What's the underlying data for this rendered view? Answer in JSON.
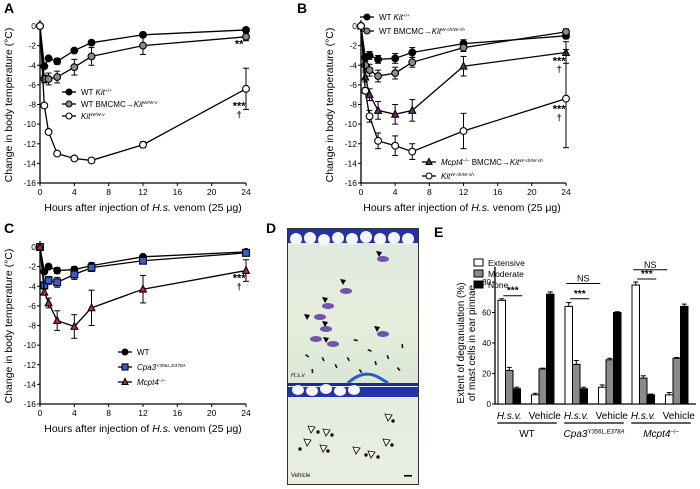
{
  "panels": {
    "A": "A",
    "B": "B",
    "C": "C",
    "D": "D",
    "E": "E"
  },
  "colors": {
    "black": "#000000",
    "gray": "#8a8a8a",
    "white": "#ffffff",
    "purple": "#6b2a7a",
    "blue": "#3a5bd9",
    "red": "#c0282b",
    "toluidine_blue": "#2a3db0",
    "tissue": "#e6eedc"
  },
  "chart_data": [
    {
      "id": "A",
      "type": "line",
      "xlabel": "Hours after injection of H.s. venom (25 μg)",
      "ylabel": "Change in body temperature (°C)",
      "xlim": [
        0,
        24
      ],
      "ylim": [
        -16,
        0
      ],
      "xticks": [
        0,
        4,
        8,
        12,
        16,
        20,
        24
      ],
      "yticks": [
        0,
        -2,
        -4,
        -6,
        -8,
        -10,
        -12,
        -14,
        -16
      ],
      "legend_position": "middle-left",
      "series": [
        {
          "name": "WT Kit+/+",
          "marker": "circle",
          "fill": "black",
          "x": [
            0,
            0.5,
            1,
            2,
            4,
            6,
            12,
            24
          ],
          "y": [
            0,
            -4.1,
            -3.3,
            -3.6,
            -2.5,
            -1.7,
            -0.9,
            -0.4
          ],
          "err": [
            0,
            0.2,
            0.2,
            0.3,
            0.2,
            0.2,
            0.2,
            0.2
          ]
        },
        {
          "name": "WT BMCMC→KitW/W-v",
          "marker": "circle",
          "fill": "gray",
          "x": [
            0,
            0.5,
            1,
            2,
            4,
            6,
            12,
            24
          ],
          "y": [
            0,
            -5.4,
            -5.4,
            -5.2,
            -4.2,
            -3.1,
            -2.0,
            -1.1
          ],
          "err": [
            0,
            0.4,
            0.6,
            0.6,
            0.8,
            0.9,
            0.9,
            0.4
          ]
        },
        {
          "name": "KitW/W-v",
          "marker": "circle",
          "fill": "white",
          "x": [
            0,
            0.5,
            1,
            2,
            4,
            6,
            12,
            24
          ],
          "y": [
            0,
            -8.1,
            -10.8,
            -13.0,
            -13.5,
            -13.7,
            -12.1,
            -6.4
          ],
          "err": [
            0,
            0.2,
            0.2,
            0.2,
            0.2,
            0.2,
            0.3,
            2.1
          ]
        }
      ],
      "annotations": [
        {
          "text": "**",
          "x": 23.2,
          "y": -1.8
        },
        {
          "text": "***",
          "x": 23.2,
          "y": -8.1
        },
        {
          "text": "†",
          "x": 23.2,
          "y": -8.9
        }
      ]
    },
    {
      "id": "B",
      "type": "line",
      "xlabel": "Hours after injection of H.s. venom (25 μg)",
      "ylabel": "Change in body temperature (°C)",
      "xlim": [
        0,
        24
      ],
      "ylim": [
        -16,
        0
      ],
      "xticks": [
        0,
        4,
        8,
        12,
        16,
        20,
        24
      ],
      "yticks": [
        0,
        -2,
        -4,
        -6,
        -8,
        -10,
        -12,
        -14,
        -16
      ],
      "legend_position": "top-left / bottom-middle",
      "series": [
        {
          "name": "WT Kit+/+",
          "marker": "circle",
          "fill": "black",
          "x": [
            0,
            0.5,
            1,
            2,
            4,
            6,
            12,
            24
          ],
          "y": [
            0,
            -3.2,
            -3.0,
            -3.4,
            -3.3,
            -2.7,
            -1.8,
            -1.0
          ],
          "err": [
            0,
            0.4,
            0.4,
            0.4,
            0.5,
            0.5,
            0.4,
            0.3
          ]
        },
        {
          "name": "WT BMCMC→KitW-sh/W-sh",
          "marker": "circle",
          "fill": "gray",
          "x": [
            0,
            0.5,
            1,
            2,
            4,
            6,
            12,
            24
          ],
          "y": [
            0,
            -4.0,
            -4.5,
            -5.1,
            -4.8,
            -3.7,
            -2.2,
            -0.6
          ],
          "err": [
            0,
            0.5,
            0.6,
            0.6,
            0.6,
            0.5,
            0.4,
            0.3
          ]
        },
        {
          "name": "Mcpt4-/- BMCMC→KitW-sh/W-sh",
          "marker": "triangle",
          "fill": "purple",
          "x": [
            0,
            0.5,
            1,
            2,
            4,
            6,
            12,
            24
          ],
          "y": [
            0,
            -5.2,
            -7.0,
            -8.6,
            -9.0,
            -8.6,
            -4.1,
            -2.7
          ],
          "err": [
            0,
            0.5,
            0.6,
            0.9,
            1.0,
            1.1,
            1.0,
            1.1
          ]
        },
        {
          "name": "KitW-sh/W-sh",
          "marker": "circle",
          "fill": "white",
          "x": [
            0,
            0.5,
            1,
            2,
            4,
            6,
            12,
            24
          ],
          "y": [
            0,
            -6.6,
            -9.2,
            -11.7,
            -12.2,
            -12.8,
            -10.7,
            -7.4
          ],
          "err": [
            0,
            0.3,
            0.6,
            0.8,
            1.0,
            0.8,
            1.8,
            5.0
          ]
        }
      ],
      "annotations": [
        {
          "text": "***",
          "x": 23.2,
          "y": -3.5
        },
        {
          "text": "†",
          "x": 23.2,
          "y": -4.3
        },
        {
          "text": "***",
          "x": 23.2,
          "y": -8.4
        },
        {
          "text": "†",
          "x": 23.2,
          "y": -9.2
        }
      ]
    },
    {
      "id": "C",
      "type": "line",
      "xlabel": "Hours after injection of H.s. venom (25 μg)",
      "ylabel": "Change in body temperature (°C)",
      "xlim": [
        0,
        24
      ],
      "ylim": [
        -16,
        0
      ],
      "xticks": [
        0,
        4,
        8,
        12,
        16,
        20,
        24
      ],
      "yticks": [
        0,
        -2,
        -4,
        -6,
        -8,
        -10,
        -12,
        -14,
        -16
      ],
      "legend_position": "bottom-middle",
      "series": [
        {
          "name": "WT",
          "marker": "circle",
          "fill": "black",
          "x": [
            0,
            0.5,
            1,
            2,
            4,
            6,
            12,
            24
          ],
          "y": [
            0,
            -2.5,
            -2.0,
            -2.4,
            -2.3,
            -1.9,
            -1.0,
            -0.5
          ],
          "err": [
            0,
            0.2,
            0.2,
            0.3,
            0.3,
            0.3,
            0.2,
            0.2
          ]
        },
        {
          "name": "Cpa3Y356L,E378A",
          "marker": "square",
          "fill": "blue",
          "x": [
            0,
            0.5,
            1,
            2,
            4,
            6,
            12,
            24
          ],
          "y": [
            0,
            -3.9,
            -3.4,
            -3.6,
            -2.8,
            -2.1,
            -1.4,
            -0.6
          ],
          "err": [
            0,
            0.3,
            0.4,
            0.5,
            0.5,
            0.4,
            0.3,
            0.2
          ]
        },
        {
          "name": "Mcpt4-/-",
          "marker": "triangle",
          "fill": "red",
          "x": [
            0,
            0.5,
            1,
            2,
            4,
            6,
            12,
            24
          ],
          "y": [
            0,
            -4.6,
            -5.7,
            -7.5,
            -8.1,
            -6.2,
            -4.3,
            -2.4
          ],
          "err": [
            0,
            0.3,
            0.5,
            1.0,
            1.2,
            1.8,
            1.4,
            1.1
          ]
        }
      ],
      "annotations": [
        {
          "text": "***",
          "x": 23.2,
          "y": -3.1
        },
        {
          "text": "†",
          "x": 23.2,
          "y": -3.9
        }
      ]
    },
    {
      "id": "E",
      "type": "bar",
      "ylabel": "Extent of degranulation (%) of mast cells in ear pinnae",
      "ylim": [
        0,
        90
      ],
      "yticks": [
        0,
        20,
        40,
        60,
        80
      ],
      "legend_position": "top-left",
      "categories": [
        "H.s.v.",
        "Vehicle",
        "H.s.v.",
        "Vehicle",
        "H.s.v.",
        "Vehicle"
      ],
      "groups": [
        "WT",
        "Cpa3Y356L,E378A",
        "Mcpt4-/-"
      ],
      "series": [
        {
          "name": "Extensive",
          "fill": "white",
          "values": [
            68,
            6,
            64,
            11,
            78,
            6
          ],
          "err": [
            1,
            1,
            2.5,
            1.5,
            2,
            1.5
          ]
        },
        {
          "name": "Moderate",
          "fill": "gray",
          "values": [
            22,
            23,
            26,
            29,
            17,
            30
          ],
          "err": [
            2,
            0.5,
            2.5,
            1,
            1.5,
            0.5
          ]
        },
        {
          "name": "None",
          "fill": "black",
          "values": [
            10,
            72,
            10,
            60,
            6,
            64
          ],
          "err": [
            1,
            1.5,
            1,
            0.5,
            0.5,
            1.5
          ]
        }
      ],
      "annotations": [
        {
          "text": "***",
          "group": 0
        },
        {
          "text": "NS",
          "group": 1
        },
        {
          "text": "***",
          "group": 1
        },
        {
          "text": "NS",
          "group": 2
        },
        {
          "text": "***",
          "group": 2
        }
      ]
    }
  ],
  "histology": {
    "top_label": "H.s.v",
    "bottom_label": "Vehicle",
    "top_markers": "filled-arrowheads",
    "bottom_markers": "open-arrowheads"
  }
}
